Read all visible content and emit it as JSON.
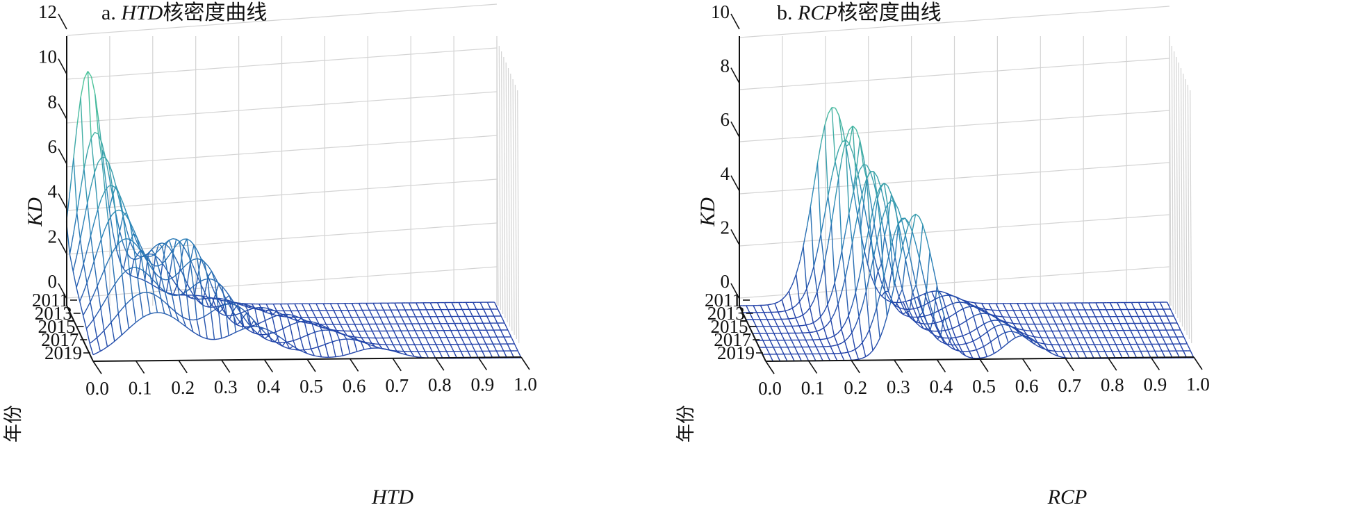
{
  "chart_data": [
    {
      "type": "3d-surface",
      "title_prefix": "a. ",
      "title_var": "HTD",
      "title_suffix": "核密度曲线",
      "xlabel": "HTD",
      "ylabel": "年份",
      "zlabel": "KD",
      "xlim": [
        0.0,
        1.0
      ],
      "zlim": [
        0,
        12
      ],
      "x_ticks": [
        "0.0",
        "0.1",
        "0.2",
        "0.3",
        "0.4",
        "0.5",
        "0.6",
        "0.7",
        "0.8",
        "0.9",
        "1.0"
      ],
      "z_ticks": [
        "0",
        "2",
        "4",
        "6",
        "8",
        "10",
        "12"
      ],
      "year_ticks": [
        "2011",
        "2013",
        "2015",
        "2017",
        "2019"
      ],
      "years": [
        2011,
        2012,
        2013,
        2014,
        2015,
        2016,
        2017,
        2018,
        2019
      ],
      "series": [
        {
          "year": 2011,
          "peaks": [
            {
              "x": 0.05,
              "height": 10.6,
              "width": 0.035
            },
            {
              "x": 0.16,
              "height": 1.2,
              "width": 0.05
            },
            {
              "x": 0.3,
              "height": 0.4,
              "width": 0.05
            }
          ]
        },
        {
          "year": 2012,
          "peaks": [
            {
              "x": 0.06,
              "height": 8.2,
              "width": 0.04
            },
            {
              "x": 0.19,
              "height": 2.6,
              "width": 0.045
            },
            {
              "x": 0.34,
              "height": 0.6,
              "width": 0.05
            }
          ]
        },
        {
          "year": 2013,
          "peaks": [
            {
              "x": 0.07,
              "height": 7.4,
              "width": 0.045
            },
            {
              "x": 0.21,
              "height": 3.4,
              "width": 0.045
            },
            {
              "x": 0.38,
              "height": 0.7,
              "width": 0.05
            }
          ]
        },
        {
          "year": 2014,
          "peaks": [
            {
              "x": 0.08,
              "height": 6.4,
              "width": 0.05
            },
            {
              "x": 0.23,
              "height": 3.9,
              "width": 0.05
            },
            {
              "x": 0.43,
              "height": 0.8,
              "width": 0.05
            }
          ]
        },
        {
          "year": 2015,
          "peaks": [
            {
              "x": 0.09,
              "height": 5.6,
              "width": 0.055
            },
            {
              "x": 0.25,
              "height": 4.2,
              "width": 0.05
            },
            {
              "x": 0.48,
              "height": 0.8,
              "width": 0.05
            }
          ]
        },
        {
          "year": 2016,
          "peaks": [
            {
              "x": 0.1,
              "height": 4.6,
              "width": 0.06
            },
            {
              "x": 0.27,
              "height": 3.6,
              "width": 0.055
            },
            {
              "x": 0.52,
              "height": 0.8,
              "width": 0.05
            }
          ]
        },
        {
          "year": 2017,
          "peaks": [
            {
              "x": 0.11,
              "height": 3.6,
              "width": 0.065
            },
            {
              "x": 0.29,
              "height": 3.0,
              "width": 0.06
            },
            {
              "x": 0.56,
              "height": 0.7,
              "width": 0.05
            }
          ]
        },
        {
          "year": 2018,
          "peaks": [
            {
              "x": 0.13,
              "height": 2.8,
              "width": 0.07
            },
            {
              "x": 0.33,
              "height": 2.2,
              "width": 0.06
            },
            {
              "x": 0.6,
              "height": 0.6,
              "width": 0.05
            }
          ]
        },
        {
          "year": 2019,
          "peaks": [
            {
              "x": 0.15,
              "height": 2.2,
              "width": 0.075
            },
            {
              "x": 0.38,
              "height": 1.5,
              "width": 0.065
            },
            {
              "x": 0.66,
              "height": 0.5,
              "width": 0.05
            }
          ]
        }
      ]
    },
    {
      "type": "3d-surface",
      "title_prefix": "b. ",
      "title_var": "RCP",
      "title_suffix": "核密度曲线",
      "xlabel": "RCP",
      "ylabel": "年份",
      "zlabel": "KD",
      "xlim": [
        0.0,
        1.0
      ],
      "zlim": [
        0,
        10
      ],
      "x_ticks": [
        "0.0",
        "0.1",
        "0.2",
        "0.3",
        "0.4",
        "0.5",
        "0.6",
        "0.7",
        "0.8",
        "0.9",
        "1.0"
      ],
      "z_ticks": [
        "0",
        "2",
        "4",
        "6",
        "8",
        "10"
      ],
      "year_ticks": [
        "2011",
        "2013",
        "2015",
        "2017",
        "2019"
      ],
      "years": [
        2011,
        2012,
        2013,
        2014,
        2015,
        2016,
        2017,
        2018,
        2019
      ],
      "series": [
        {
          "year": 2011,
          "peaks": [
            {
              "x": 0.22,
              "height": 7.6,
              "width": 0.045
            },
            {
              "x": 0.46,
              "height": 0.5,
              "width": 0.04
            }
          ]
        },
        {
          "year": 2012,
          "peaks": [
            {
              "x": 0.24,
              "height": 6.6,
              "width": 0.045
            },
            {
              "x": 0.48,
              "height": 0.6,
              "width": 0.04
            }
          ]
        },
        {
          "year": 2013,
          "peaks": [
            {
              "x": 0.25,
              "height": 7.4,
              "width": 0.042
            },
            {
              "x": 0.5,
              "height": 0.6,
              "width": 0.04
            }
          ]
        },
        {
          "year": 2014,
          "peaks": [
            {
              "x": 0.27,
              "height": 6.2,
              "width": 0.043
            },
            {
              "x": 0.52,
              "height": 0.7,
              "width": 0.04
            }
          ]
        },
        {
          "year": 2015,
          "peaks": [
            {
              "x": 0.28,
              "height": 6.2,
              "width": 0.043
            },
            {
              "x": 0.54,
              "height": 0.7,
              "width": 0.04
            }
          ]
        },
        {
          "year": 2016,
          "peaks": [
            {
              "x": 0.3,
              "height": 6.0,
              "width": 0.043
            },
            {
              "x": 0.56,
              "height": 0.7,
              "width": 0.04
            }
          ]
        },
        {
          "year": 2017,
          "peaks": [
            {
              "x": 0.31,
              "height": 5.6,
              "width": 0.043
            },
            {
              "x": 0.57,
              "height": 0.8,
              "width": 0.04
            }
          ]
        },
        {
          "year": 2018,
          "peaks": [
            {
              "x": 0.33,
              "height": 5.2,
              "width": 0.043
            },
            {
              "x": 0.58,
              "height": 0.8,
              "width": 0.04
            }
          ]
        },
        {
          "year": 2019,
          "peaks": [
            {
              "x": 0.35,
              "height": 5.6,
              "width": 0.043
            },
            {
              "x": 0.6,
              "height": 0.9,
              "width": 0.04
            }
          ]
        }
      ]
    }
  ],
  "colors": {
    "low": "#2140a8",
    "mid": "#2b85b8",
    "high": "#4cc39a"
  }
}
